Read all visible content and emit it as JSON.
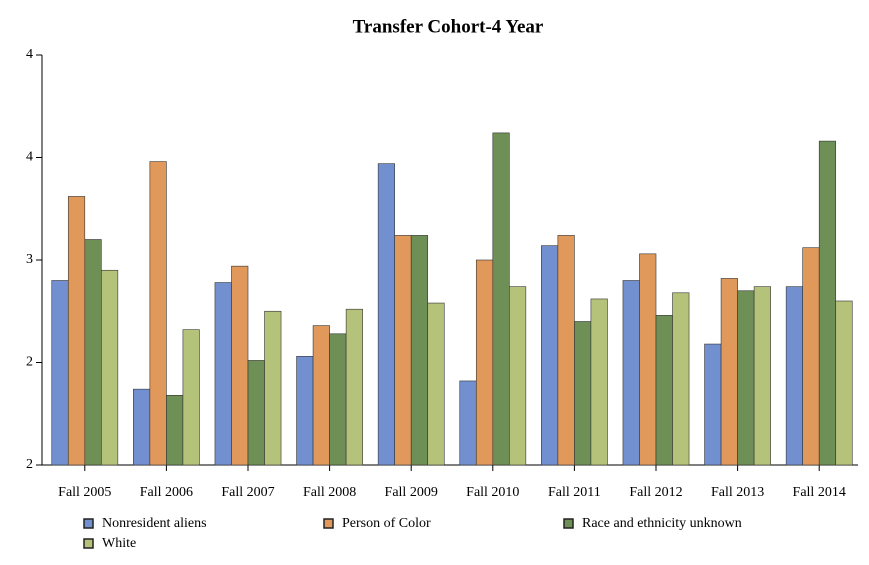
{
  "chart_data": {
    "type": "bar",
    "title": "Transfer Cohort-4 Year",
    "categories": [
      "Fall 2005",
      "Fall 2006",
      "Fall 2007",
      "Fall 2008",
      "Fall 2009",
      "Fall 2010",
      "Fall 2011",
      "Fall 2012",
      "Fall 2013",
      "Fall 2014"
    ],
    "series": [
      {
        "name": "Nonresident aliens",
        "color": "#7290d0",
        "values": [
          2.9,
          2.37,
          2.89,
          2.53,
          3.47,
          2.41,
          3.07,
          2.9,
          2.59,
          2.87
        ]
      },
      {
        "name": "Person of Color",
        "color": "#e0995a",
        "values": [
          3.31,
          3.48,
          2.97,
          2.68,
          3.12,
          3.0,
          3.12,
          3.03,
          2.91,
          3.06
        ]
      },
      {
        "name": "Race and ethnicity unknown",
        "color": "#6e8f55",
        "values": [
          3.1,
          2.34,
          2.51,
          2.64,
          3.12,
          3.62,
          2.7,
          2.73,
          2.85,
          3.58
        ]
      },
      {
        "name": "White",
        "color": "#b5c27a",
        "values": [
          2.95,
          2.66,
          2.75,
          2.76,
          2.79,
          2.87,
          2.81,
          2.84,
          2.87,
          2.8
        ]
      }
    ],
    "ylim": [
      2,
      4
    ],
    "yticks": [
      2,
      {
        "value": 2.5,
        "label": "2"
      },
      3,
      {
        "value": 3.5,
        "label": "4"
      },
      4
    ],
    "legend": "bottom"
  }
}
